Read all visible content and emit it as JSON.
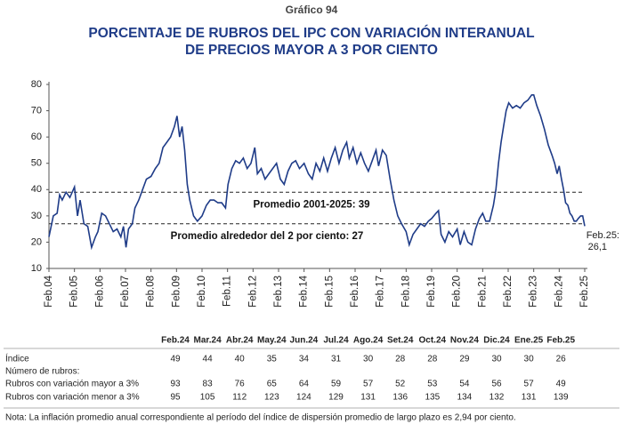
{
  "chart_data": {
    "type": "line",
    "label": "Gráfico 94",
    "title": [
      "PORCENTAJE DE RUBROS DEL IPC CON VARIACIÓN INTERANUAL",
      "DE PRECIOS MAYOR A 3 POR CIENTO"
    ],
    "xlim": [
      2004.08,
      2025.08
    ],
    "xticks": [
      {
        "value": 2004.08,
        "label": "Feb.04"
      },
      {
        "value": 2005.08,
        "label": "Feb.05"
      },
      {
        "value": 2006.08,
        "label": "Feb.06"
      },
      {
        "value": 2007.08,
        "label": "Feb.07"
      },
      {
        "value": 2008.08,
        "label": "Feb.08"
      },
      {
        "value": 2009.08,
        "label": "Feb.09"
      },
      {
        "value": 2010.08,
        "label": "Feb.10"
      },
      {
        "value": 2011.08,
        "label": "Feb.11"
      },
      {
        "value": 2012.08,
        "label": "Feb.12"
      },
      {
        "value": 2013.08,
        "label": "Feb.13"
      },
      {
        "value": 2014.08,
        "label": "Feb.14"
      },
      {
        "value": 2015.08,
        "label": "Feb.15"
      },
      {
        "value": 2016.08,
        "label": "Feb.16"
      },
      {
        "value": 2017.08,
        "label": "Feb.17"
      },
      {
        "value": 2018.08,
        "label": "Feb.18"
      },
      {
        "value": 2019.08,
        "label": "Feb.19"
      },
      {
        "value": 2020.08,
        "label": "Feb.20"
      },
      {
        "value": 2021.08,
        "label": "Feb.21"
      },
      {
        "value": 2022.08,
        "label": "Feb.22"
      },
      {
        "value": 2023.08,
        "label": "Feb.23"
      },
      {
        "value": 2024.08,
        "label": "Feb.24"
      },
      {
        "value": 2025.08,
        "label": "Feb.25"
      }
    ],
    "ylim": [
      10,
      80
    ],
    "yticks": [
      10,
      20,
      30,
      40,
      50,
      60,
      70,
      80
    ],
    "x": [
      2004.08,
      2004.25,
      2004.4,
      2004.5,
      2004.6,
      2004.75,
      2004.9,
      2005.08,
      2005.2,
      2005.3,
      2005.45,
      2005.6,
      2005.75,
      2005.9,
      2006.0,
      2006.15,
      2006.3,
      2006.45,
      2006.6,
      2006.75,
      2006.9,
      2007.0,
      2007.1,
      2007.2,
      2007.35,
      2007.45,
      2007.6,
      2007.75,
      2007.9,
      2008.08,
      2008.25,
      2008.4,
      2008.55,
      2008.7,
      2008.85,
      2009.0,
      2009.1,
      2009.2,
      2009.3,
      2009.4,
      2009.5,
      2009.6,
      2009.75,
      2009.9,
      2010.08,
      2010.25,
      2010.4,
      2010.55,
      2010.7,
      2010.85,
      2011.0,
      2011.1,
      2011.25,
      2011.4,
      2011.55,
      2011.7,
      2011.85,
      2012.0,
      2012.15,
      2012.25,
      2012.4,
      2012.55,
      2012.7,
      2012.85,
      2013.0,
      2013.15,
      2013.3,
      2013.45,
      2013.6,
      2013.75,
      2013.9,
      2014.08,
      2014.25,
      2014.4,
      2014.55,
      2014.7,
      2014.85,
      2015.0,
      2015.15,
      2015.3,
      2015.45,
      2015.6,
      2015.75,
      2015.85,
      2016.0,
      2016.15,
      2016.3,
      2016.45,
      2016.6,
      2016.75,
      2016.9,
      2017.0,
      2017.15,
      2017.3,
      2017.45,
      2017.6,
      2017.75,
      2017.9,
      2018.08,
      2018.2,
      2018.35,
      2018.5,
      2018.65,
      2018.8,
      2018.95,
      2019.08,
      2019.25,
      2019.35,
      2019.45,
      2019.6,
      2019.75,
      2019.9,
      2020.08,
      2020.2,
      2020.35,
      2020.5,
      2020.65,
      2020.8,
      2020.95,
      2021.08,
      2021.2,
      2021.35,
      2021.5,
      2021.6,
      2021.7,
      2021.8,
      2021.9,
      2022.0,
      2022.1,
      2022.25,
      2022.4,
      2022.55,
      2022.7,
      2022.85,
      2023.0,
      2023.08,
      2023.2,
      2023.35,
      2023.5,
      2023.65,
      2023.8,
      2023.9,
      2024.0,
      2024.08,
      2024.17,
      2024.25,
      2024.33,
      2024.42,
      2024.5,
      2024.58,
      2024.67,
      2024.75,
      2024.83,
      2024.92,
      2025.0,
      2025.08
    ],
    "series": [
      {
        "color": "#1f3c88",
        "values": [
          22,
          30,
          31,
          38,
          36,
          39,
          37,
          41,
          30,
          36,
          27,
          26,
          18,
          22,
          24,
          31,
          30,
          27,
          24,
          25,
          22,
          26,
          18,
          25,
          27,
          33,
          36,
          40,
          44,
          45,
          48,
          50,
          56,
          58,
          60,
          64,
          68,
          60,
          64,
          55,
          42,
          36,
          30,
          28,
          30,
          34,
          36,
          36,
          35,
          35,
          33,
          42,
          48,
          51,
          50,
          52,
          48,
          50,
          56,
          46,
          48,
          44,
          46,
          48,
          50,
          44,
          42,
          47,
          50,
          51,
          48,
          50,
          46,
          44,
          50,
          47,
          52,
          47,
          52,
          56,
          50,
          55,
          58,
          52,
          56,
          50,
          54,
          50,
          47,
          51,
          55,
          49,
          55,
          53,
          44,
          36,
          30,
          27,
          24,
          19,
          23,
          25,
          27,
          26,
          28,
          29,
          31,
          32,
          23,
          20,
          24,
          22,
          25,
          19,
          24,
          20,
          19,
          25,
          29,
          31,
          28,
          28,
          34,
          40,
          50,
          58,
          64,
          70,
          73,
          71,
          72,
          71,
          73,
          74,
          76,
          76,
          72,
          68,
          63,
          57,
          53,
          50,
          46,
          49,
          44,
          40,
          35,
          34,
          31,
          30,
          28,
          28,
          29,
          30,
          30,
          26.1
        ]
      }
    ],
    "reference_lines": [
      {
        "value": 39,
        "label": "Promedio 2001-2025: 39"
      },
      {
        "value": 27,
        "label": "Promedio alrededor del 2 por ciento: 27"
      }
    ],
    "end_label": [
      "Feb.25:",
      "26,1"
    ]
  },
  "table": {
    "columns": [
      "Feb.24",
      "Mar.24",
      "Abr.24",
      "May.24",
      "Jun.24",
      "Jul.24",
      "Ago.24",
      "Set.24",
      "Oct.24",
      "Nov.24",
      "Dic.24",
      "Ene.25",
      "Feb.25"
    ],
    "rows": [
      {
        "label": "Índice",
        "values": [
          49,
          44,
          40,
          35,
          34,
          31,
          30,
          28,
          28,
          29,
          30,
          30,
          26
        ]
      },
      {
        "label": "Número de rubros:",
        "values": []
      },
      {
        "label": "Rubros con variación mayor a 3%",
        "values": [
          93,
          83,
          76,
          65,
          64,
          59,
          57,
          52,
          53,
          54,
          56,
          57,
          49
        ]
      },
      {
        "label": "Rubros con variación menor a 3%",
        "values": [
          95,
          105,
          112,
          123,
          124,
          129,
          131,
          136,
          135,
          134,
          132,
          131,
          139
        ]
      }
    ]
  },
  "note": "Nota: La inflación promedio anual correspondiente al período del índice de dispersión promedio de largo plazo es 2,94 por ciento."
}
